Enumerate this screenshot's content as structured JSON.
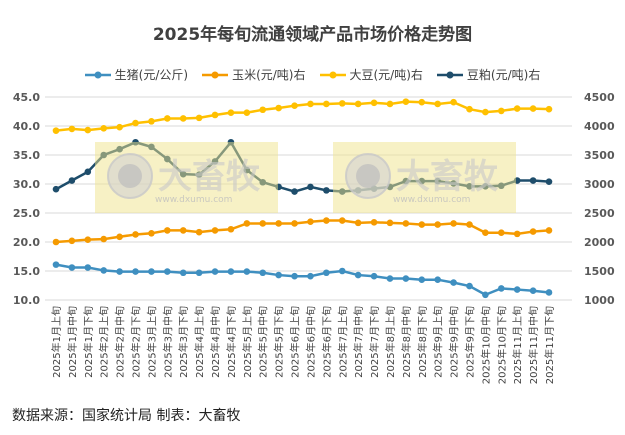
{
  "chart_data": {
    "type": "line",
    "title": "2025年每旬流通领域产品市场价格走势图",
    "categories": [
      "2025年1月上旬",
      "2025年1月中旬",
      "2025年1月下旬",
      "2025年2月上旬",
      "2025年2月中旬",
      "2025年2月下旬",
      "2025年3月上旬",
      "2025年3月中旬",
      "2025年3月下旬",
      "2025年4月上旬",
      "2025年4月中旬",
      "2025年4月下旬",
      "2025年5月上旬",
      "2025年5月中旬",
      "2025年5月下旬",
      "2025年6月上旬",
      "2025年6月中旬",
      "2025年6月下旬",
      "2025年7月上旬",
      "2025年7月中旬",
      "2025年7月下旬",
      "2025年8月上旬",
      "2025年8月中旬",
      "2025年8月下旬",
      "2025年9月上旬",
      "2025年9月中旬",
      "2025年9月下旬",
      "2025年10月中旬",
      "2025年10月下旬",
      "2025年11月上旬",
      "2025年11月中旬",
      "2025年11月下旬"
    ],
    "left_axis": {
      "range": [
        10,
        45
      ],
      "ticks": [
        "10.0",
        "15.0",
        "20.0",
        "25.0",
        "30.0",
        "35.0",
        "40.0",
        "45.0"
      ]
    },
    "right_axis": {
      "range": [
        1000,
        4500
      ],
      "ticks": [
        "1000",
        "1500",
        "2000",
        "2500",
        "3000",
        "3500",
        "4000",
        "4500"
      ]
    },
    "grid": true,
    "legend": "top",
    "series": [
      {
        "name": "生猪(元/公斤)",
        "axis": "left",
        "color": "#3f8fc0",
        "values": [
          16.1,
          15.6,
          15.6,
          15.1,
          14.9,
          14.9,
          14.9,
          14.9,
          14.7,
          14.7,
          14.9,
          14.9,
          14.9,
          14.7,
          14.3,
          14.1,
          14.1,
          14.7,
          15.0,
          14.3,
          14.1,
          13.7,
          13.7,
          13.5,
          13.5,
          13.0,
          12.4,
          10.9,
          12.0,
          11.8,
          11.6,
          11.3
        ]
      },
      {
        "name": "玉米(元/吨)右",
        "axis": "right",
        "color": "#f59a00",
        "values": [
          2000,
          2020,
          2040,
          2050,
          2090,
          2130,
          2150,
          2200,
          2200,
          2170,
          2200,
          2220,
          2320,
          2320,
          2320,
          2320,
          2350,
          2370,
          2370,
          2330,
          2340,
          2330,
          2320,
          2300,
          2300,
          2320,
          2300,
          2160,
          2160,
          2140,
          2180,
          2200
        ]
      },
      {
        "name": "大豆(元/吨)右",
        "axis": "right",
        "color": "#ffc000",
        "values": [
          3920,
          3950,
          3930,
          3960,
          3980,
          4050,
          4080,
          4130,
          4130,
          4140,
          4190,
          4230,
          4230,
          4280,
          4310,
          4350,
          4380,
          4380,
          4390,
          4380,
          4400,
          4380,
          4420,
          4410,
          4380,
          4410,
          4290,
          4240,
          4260,
          4300,
          4300,
          4290
        ]
      },
      {
        "name": "豆粕(元/吨)右",
        "axis": "right",
        "color": "#1e4d6b",
        "values": [
          2910,
          3060,
          3210,
          3500,
          3600,
          3720,
          3640,
          3430,
          3170,
          3160,
          3390,
          3720,
          3240,
          3030,
          2950,
          2870,
          2950,
          2890,
          2870,
          2890,
          2920,
          2950,
          3050,
          3050,
          3050,
          3010,
          2960,
          2960,
          2970,
          3060,
          3060,
          3040
        ]
      }
    ]
  },
  "watermark": {
    "brand": "大畜牧",
    "url": "www.dxumu.com"
  },
  "footer": "数据来源：国家统计局  制表：大畜牧"
}
